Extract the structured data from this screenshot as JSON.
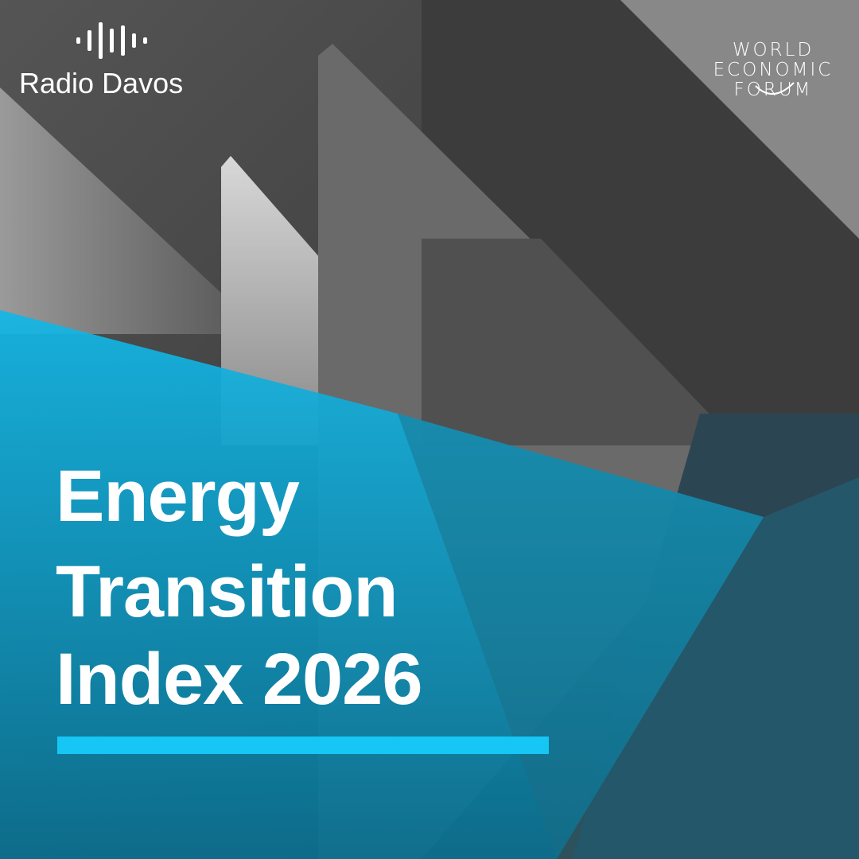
{
  "brand": {
    "name": "Radio Davos"
  },
  "partner": {
    "lines": [
      "WORLD",
      "ECONOMIC",
      "FORUM"
    ]
  },
  "title": {
    "lines": [
      "Energy",
      "Transition",
      "Index 2026"
    ]
  }
}
